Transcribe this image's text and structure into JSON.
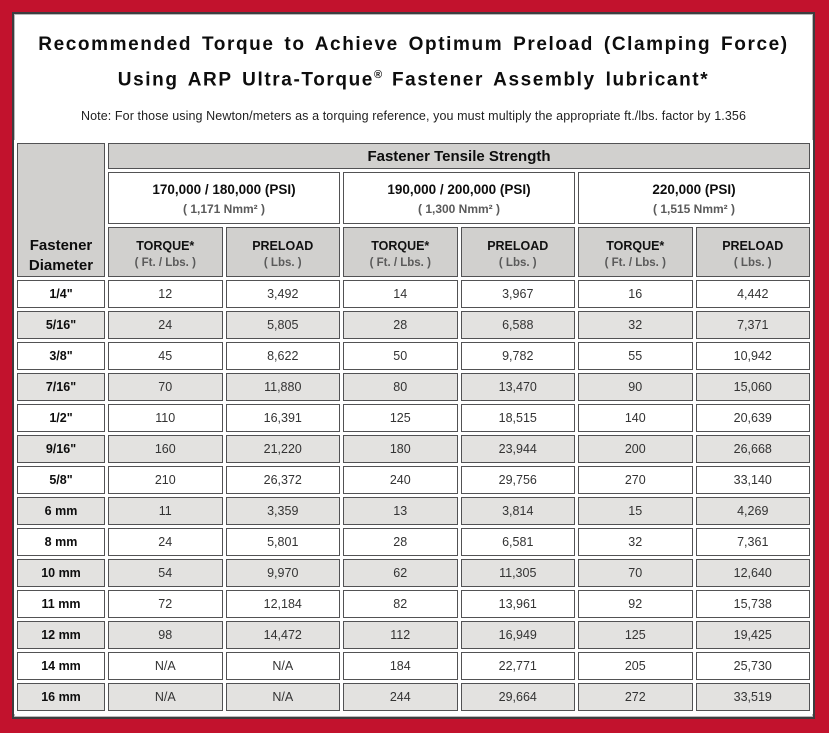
{
  "colors": {
    "frame_red": "#c2122d",
    "header_gray": "#d1d0ce",
    "stripe_gray": "#e3e2e0",
    "cell_border": "#525254"
  },
  "header": {
    "title_line1": "Recommended Torque to Achieve Optimum Preload (Clamping Force)",
    "title_line2_pre": "Using ARP Ultra-Torque",
    "title_line2_reg": "®",
    "title_line2_post": " Fastener Assembly lubricant*",
    "note": "Note: For those using Newton/meters as a torquing reference, you must multiply the appropriate ft./lbs. factor by 1.356"
  },
  "table": {
    "main_header": "Fastener Tensile Strength",
    "corner_line1": "Fastener",
    "corner_line2": "Diameter",
    "groups": [
      {
        "psi": "170,000 / 180,000 (PSI)",
        "nmm": "( 1,171 Nmm² )"
      },
      {
        "psi": "190,000 / 200,000 (PSI)",
        "nmm": "( 1,300 Nmm² )"
      },
      {
        "psi": "220,000 (PSI)",
        "nmm": "( 1,515 Nmm² )"
      }
    ],
    "column_pair": {
      "torque_label": "TORQUE*",
      "torque_unit": "( Ft. / Lbs. )",
      "preload_label": "PRELOAD",
      "preload_unit": "( Lbs. )"
    },
    "rows": [
      {
        "diameter": "1/4\"",
        "values": [
          "12",
          "3,492",
          "14",
          "3,967",
          "16",
          "4,442"
        ]
      },
      {
        "diameter": "5/16\"",
        "values": [
          "24",
          "5,805",
          "28",
          "6,588",
          "32",
          "7,371"
        ]
      },
      {
        "diameter": "3/8\"",
        "values": [
          "45",
          "8,622",
          "50",
          "9,782",
          "55",
          "10,942"
        ]
      },
      {
        "diameter": "7/16\"",
        "values": [
          "70",
          "11,880",
          "80",
          "13,470",
          "90",
          "15,060"
        ]
      },
      {
        "diameter": "1/2\"",
        "values": [
          "110",
          "16,391",
          "125",
          "18,515",
          "140",
          "20,639"
        ]
      },
      {
        "diameter": "9/16\"",
        "values": [
          "160",
          "21,220",
          "180",
          "23,944",
          "200",
          "26,668"
        ]
      },
      {
        "diameter": "5/8\"",
        "values": [
          "210",
          "26,372",
          "240",
          "29,756",
          "270",
          "33,140"
        ]
      },
      {
        "diameter": "6 mm",
        "values": [
          "11",
          "3,359",
          "13",
          "3,814",
          "15",
          "4,269"
        ]
      },
      {
        "diameter": "8 mm",
        "values": [
          "24",
          "5,801",
          "28",
          "6,581",
          "32",
          "7,361"
        ]
      },
      {
        "diameter": "10 mm",
        "values": [
          "54",
          "9,970",
          "62",
          "11,305",
          "70",
          "12,640"
        ]
      },
      {
        "diameter": "11 mm",
        "values": [
          "72",
          "12,184",
          "82",
          "13,961",
          "92",
          "15,738"
        ]
      },
      {
        "diameter": "12 mm",
        "values": [
          "98",
          "14,472",
          "112",
          "16,949",
          "125",
          "19,425"
        ]
      },
      {
        "diameter": "14 mm",
        "values": [
          "N/A",
          "N/A",
          "184",
          "22,771",
          "205",
          "25,730"
        ]
      },
      {
        "diameter": "16 mm",
        "values": [
          "N/A",
          "N/A",
          "244",
          "29,664",
          "272",
          "33,519"
        ]
      }
    ]
  }
}
